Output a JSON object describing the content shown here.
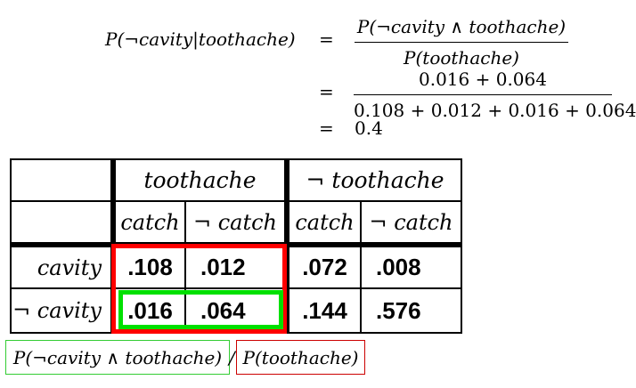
{
  "equations": {
    "lhs": "P(¬cavity|toothache)",
    "eq1": "=",
    "frac1_num": "P(¬cavity ∧ toothache)",
    "frac1_den": "P(toothache)",
    "eq2": "=",
    "frac2_num": "0.016 + 0.064",
    "frac2_den": "0.108 + 0.012 + 0.016 + 0.064",
    "eq3": "=",
    "result": "0.4"
  },
  "table": {
    "col_group_1": "toothache",
    "col_group_2": "¬ toothache",
    "sub_headers": [
      "catch",
      "¬ catch",
      "catch",
      "¬ catch"
    ],
    "rows": [
      {
        "label": "cavity",
        "values": [
          ".108",
          ".012",
          ".072",
          ".008"
        ]
      },
      {
        "label": "¬ cavity",
        "values": [
          ".016",
          ".064",
          ".144",
          ".576"
        ]
      }
    ]
  },
  "annotations": {
    "numerator_label": "P(¬cavity ∧ toothache)",
    "slash": "/",
    "denominator_label": "P(toothache)",
    "numerator_color": "#33cc33",
    "denominator_color": "#cc0000",
    "highlight_red": "#ff0000",
    "highlight_green": "#00e000"
  }
}
